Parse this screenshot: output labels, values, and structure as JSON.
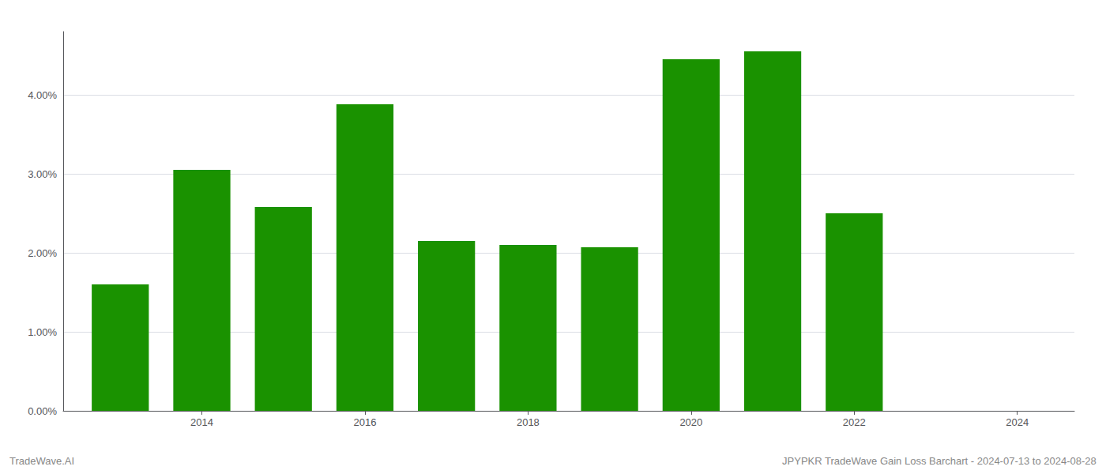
{
  "chart_data": {
    "type": "bar",
    "x": [
      2013,
      2014,
      2015,
      2016,
      2017,
      2018,
      2019,
      2020,
      2021,
      2022
    ],
    "values": [
      0.016,
      0.0305,
      0.0258,
      0.0388,
      0.0215,
      0.021,
      0.0207,
      0.0445,
      0.0455,
      0.025
    ],
    "color": "#1a9200",
    "xlim": [
      2012.3,
      2024.7
    ],
    "xticks": [
      2014,
      2016,
      2018,
      2020,
      2022,
      2024
    ],
    "ylim": [
      0,
      0.048
    ],
    "yticks": [
      {
        "value": 0.0,
        "label": "0.00%"
      },
      {
        "value": 0.01,
        "label": "1.00%"
      },
      {
        "value": 0.02,
        "label": "2.00%"
      },
      {
        "value": 0.03,
        "label": "3.00%"
      },
      {
        "value": 0.04,
        "label": "4.00%"
      }
    ],
    "grid": true,
    "annotations": [
      "TradeWave.AI",
      "JPYPKR TradeWave Gain Loss Barchart - 2024-07-13 to 2024-08-28"
    ]
  }
}
